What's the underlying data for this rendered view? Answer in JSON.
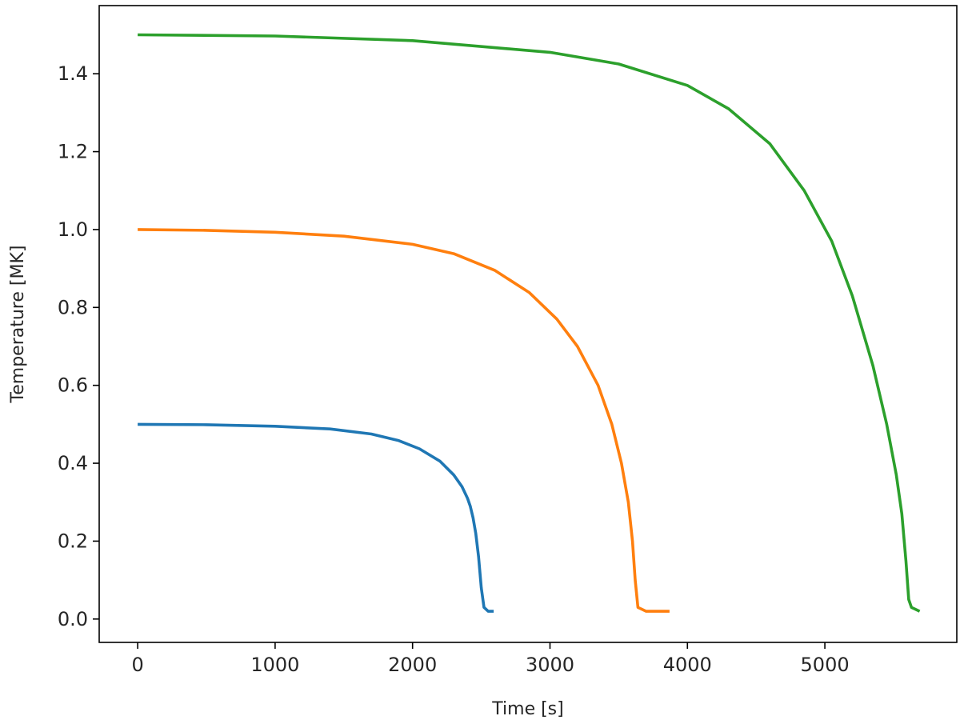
{
  "chart_data": {
    "type": "line",
    "title": "",
    "xlabel": "Time [s]",
    "ylabel": "Temperature [MK]",
    "xlim": [
      -280,
      5960
    ],
    "ylim": [
      -0.06,
      1.575
    ],
    "xticks": [
      0,
      1000,
      2000,
      3000,
      4000,
      5000
    ],
    "xtick_labels": [
      "0",
      "1000",
      "2000",
      "3000",
      "4000",
      "5000"
    ],
    "yticks": [
      0.0,
      0.2,
      0.4,
      0.6,
      0.8,
      1.0,
      1.2,
      1.4
    ],
    "ytick_labels": [
      "0.0",
      "0.2",
      "0.4",
      "0.6",
      "0.8",
      "1.0",
      "1.2",
      "1.4"
    ],
    "grid": false,
    "legend": "none",
    "series": [
      {
        "color": "#1f77b4",
        "x": [
          0,
          500,
          1000,
          1400,
          1700,
          1900,
          2050,
          2200,
          2300,
          2360,
          2400,
          2420,
          2440,
          2460,
          2480,
          2500,
          2520,
          2550,
          2590
        ],
        "y": [
          0.5,
          0.499,
          0.495,
          0.488,
          0.475,
          0.458,
          0.437,
          0.405,
          0.37,
          0.34,
          0.31,
          0.29,
          0.26,
          0.22,
          0.16,
          0.08,
          0.03,
          0.02,
          0.02
        ]
      },
      {
        "color": "#ff7f0e",
        "x": [
          0,
          500,
          1000,
          1500,
          2000,
          2300,
          2600,
          2850,
          3050,
          3200,
          3350,
          3450,
          3520,
          3570,
          3600,
          3620,
          3640,
          3700,
          3870
        ],
        "y": [
          1.0,
          0.998,
          0.993,
          0.983,
          0.962,
          0.938,
          0.895,
          0.838,
          0.77,
          0.7,
          0.6,
          0.5,
          0.4,
          0.3,
          0.2,
          0.1,
          0.03,
          0.02,
          0.02
        ]
      },
      {
        "color": "#2ca02c",
        "x": [
          0,
          1000,
          2000,
          3000,
          3500,
          4000,
          4300,
          4600,
          4850,
          5050,
          5200,
          5350,
          5450,
          5520,
          5560,
          5590,
          5610,
          5630,
          5690
        ],
        "y": [
          1.5,
          1.497,
          1.485,
          1.455,
          1.425,
          1.37,
          1.31,
          1.22,
          1.1,
          0.97,
          0.83,
          0.65,
          0.5,
          0.37,
          0.27,
          0.15,
          0.05,
          0.03,
          0.02
        ]
      }
    ]
  }
}
